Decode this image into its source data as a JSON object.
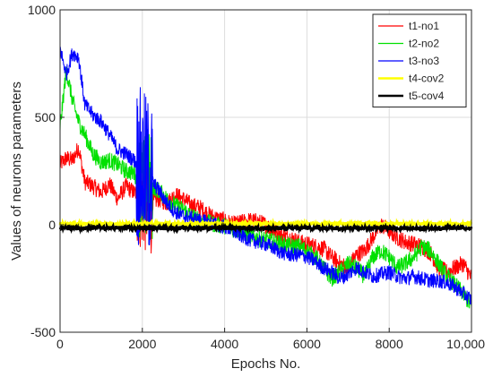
{
  "chart_data": {
    "type": "line",
    "title": "",
    "xlabel": "Epochs No.",
    "ylabel": "Values of neurons parameters",
    "xlim": [
      0,
      10000
    ],
    "ylim": [
      -500,
      1000
    ],
    "xticks": [
      0,
      2000,
      4000,
      6000,
      8000,
      10000
    ],
    "xtick_labels": [
      "0",
      "2000",
      "4000",
      "6000",
      "8000",
      "10,000"
    ],
    "yticks": [
      -500,
      0,
      500,
      1000
    ],
    "ytick_labels": [
      "-500",
      "0",
      "500",
      "1000"
    ],
    "grid": true,
    "legend_position": "top-right",
    "series": [
      {
        "name": "t1-no1",
        "color": "#ff0000",
        "x": [
          0,
          150,
          300,
          450,
          600,
          800,
          1000,
          1200,
          1400,
          1600,
          1800,
          2000,
          2200,
          2400,
          2600,
          2800,
          3000,
          3200,
          3400,
          3600,
          3800,
          4000,
          4200,
          4400,
          4600,
          4800,
          5000,
          5200,
          5400,
          5600,
          5800,
          6000,
          6200,
          6400,
          6600,
          6800,
          7000,
          7200,
          7400,
          7600,
          7800,
          8000,
          8200,
          8400,
          8600,
          8800,
          9000,
          9200,
          9400,
          9600,
          9800,
          10000
        ],
        "y": [
          280,
          310,
          300,
          360,
          200,
          180,
          150,
          190,
          120,
          180,
          150,
          130,
          100,
          120,
          100,
          140,
          120,
          90,
          80,
          50,
          30,
          20,
          0,
          10,
          20,
          15,
          0,
          -30,
          -50,
          -60,
          -80,
          -90,
          -100,
          -110,
          -150,
          -180,
          -200,
          -140,
          -120,
          -60,
          0,
          -30,
          -60,
          -80,
          -90,
          -100,
          -130,
          -200,
          -220,
          -200,
          -180,
          -250
        ],
        "noise": 40
      },
      {
        "name": "t2-no2",
        "color": "#00e000",
        "x": [
          0,
          150,
          300,
          450,
          600,
          800,
          1000,
          1200,
          1400,
          1600,
          1800,
          2000,
          2200,
          2400,
          2600,
          2800,
          3000,
          3200,
          3400,
          3600,
          3800,
          4000,
          4200,
          4400,
          4600,
          4800,
          5000,
          5200,
          5400,
          5600,
          5800,
          6000,
          6200,
          6400,
          6600,
          6800,
          7000,
          7200,
          7400,
          7600,
          7800,
          8000,
          8200,
          8400,
          8600,
          8800,
          9000,
          9200,
          9400,
          9600,
          9800,
          10000
        ],
        "y": [
          450,
          720,
          580,
          480,
          420,
          330,
          290,
          300,
          280,
          250,
          240,
          160,
          180,
          160,
          120,
          90,
          70,
          40,
          20,
          10,
          0,
          -5,
          -20,
          -30,
          -50,
          -60,
          -70,
          -80,
          -90,
          -100,
          -100,
          -120,
          -150,
          -200,
          -250,
          -220,
          -180,
          -200,
          -240,
          -150,
          -120,
          -150,
          -200,
          -180,
          -150,
          -100,
          -120,
          -180,
          -240,
          -280,
          -320,
          -380
        ],
        "noise": 40
      },
      {
        "name": "t3-no3",
        "color": "#0000ff",
        "x": [
          0,
          150,
          300,
          450,
          600,
          800,
          1000,
          1200,
          1400,
          1600,
          1800,
          2000,
          2200,
          2400,
          2600,
          2800,
          3000,
          3200,
          3400,
          3600,
          3800,
          4000,
          4200,
          4400,
          4600,
          4800,
          5000,
          5200,
          5400,
          5600,
          5800,
          6000,
          6200,
          6400,
          6600,
          6800,
          7000,
          7200,
          7400,
          7600,
          7800,
          8000,
          8200,
          8400,
          8600,
          8800,
          9000,
          9200,
          9400,
          9600,
          9800,
          10000
        ],
        "y": [
          820,
          700,
          800,
          780,
          560,
          510,
          480,
          420,
          350,
          330,
          300,
          250,
          210,
          160,
          100,
          60,
          40,
          30,
          20,
          10,
          0,
          -10,
          -30,
          -50,
          -70,
          -80,
          -90,
          -110,
          -130,
          -140,
          -140,
          -150,
          -170,
          -200,
          -220,
          -250,
          -230,
          -200,
          -220,
          -240,
          -230,
          -220,
          -240,
          -250,
          -240,
          -250,
          -260,
          -260,
          -270,
          -290,
          -320,
          -350
        ],
        "noise": 35
      },
      {
        "name": "t4-cov2",
        "color": "#ffff00",
        "x": [
          0,
          10000
        ],
        "y": [
          5,
          5
        ],
        "noise": 8
      },
      {
        "name": "t5-cov4",
        "color": "#000000",
        "x": [
          0,
          10000
        ],
        "y": [
          -15,
          -15
        ],
        "noise": 10
      }
    ],
    "annotations": [
      {
        "series": "t3-no3",
        "x_range": [
          1800,
          2200
        ],
        "y_range": [
          -250,
          560
        ],
        "note": "burst"
      }
    ]
  }
}
